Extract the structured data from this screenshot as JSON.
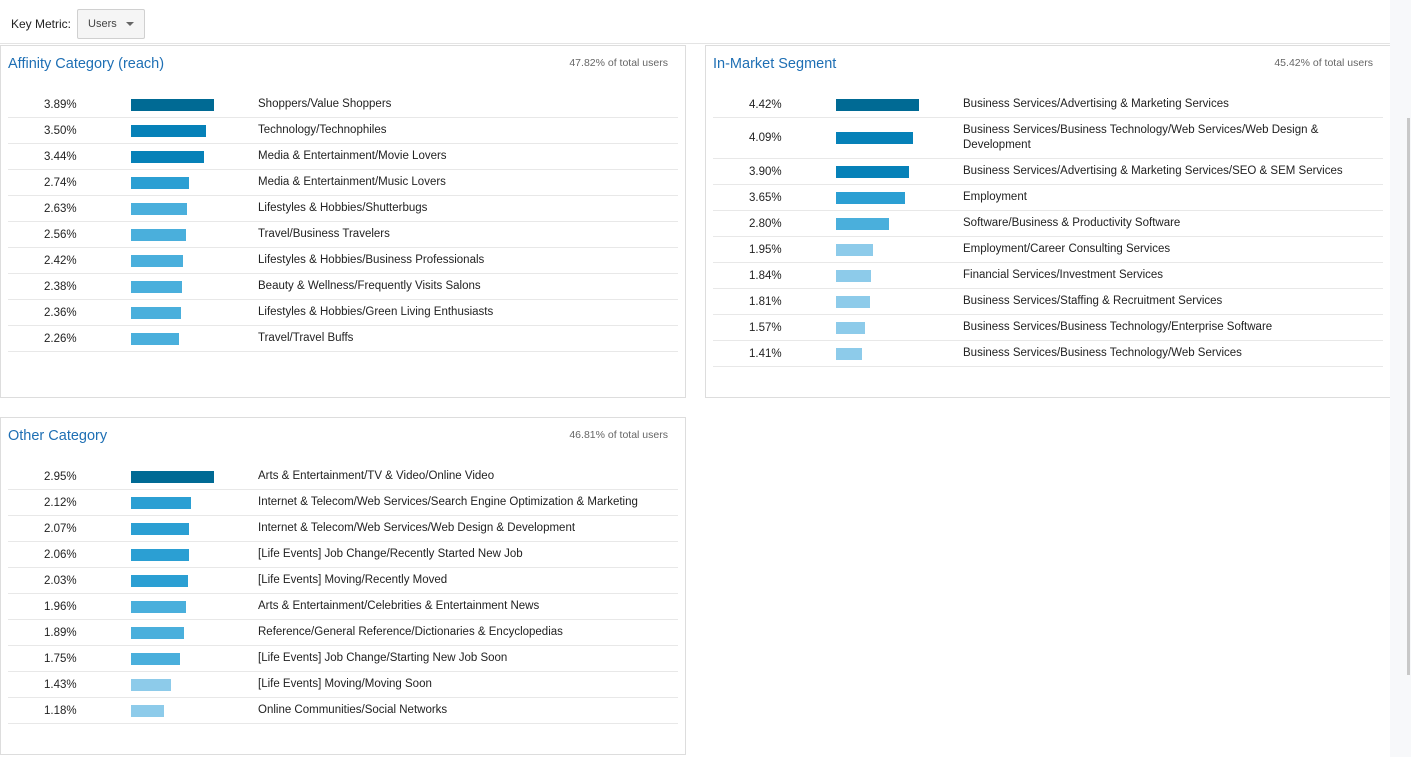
{
  "key_metric": {
    "label": "Key Metric:",
    "value": "Users"
  },
  "panels": [
    {
      "title": "Affinity Category (reach)",
      "total": "47.82% of total users",
      "rows": [
        {
          "pct": "3.89%",
          "value": 3.89,
          "label": "Shoppers/Value Shoppers"
        },
        {
          "pct": "3.50%",
          "value": 3.5,
          "label": "Technology/Technophiles"
        },
        {
          "pct": "3.44%",
          "value": 3.44,
          "label": "Media & Entertainment/Movie Lovers"
        },
        {
          "pct": "2.74%",
          "value": 2.74,
          "label": "Media & Entertainment/Music Lovers"
        },
        {
          "pct": "2.63%",
          "value": 2.63,
          "label": "Lifestyles & Hobbies/Shutterbugs"
        },
        {
          "pct": "2.56%",
          "value": 2.56,
          "label": "Travel/Business Travelers"
        },
        {
          "pct": "2.42%",
          "value": 2.42,
          "label": "Lifestyles & Hobbies/Business Professionals"
        },
        {
          "pct": "2.38%",
          "value": 2.38,
          "label": "Beauty & Wellness/Frequently Visits Salons"
        },
        {
          "pct": "2.36%",
          "value": 2.36,
          "label": "Lifestyles & Hobbies/Green Living Enthusiasts"
        },
        {
          "pct": "2.26%",
          "value": 2.26,
          "label": "Travel/Travel Buffs"
        }
      ]
    },
    {
      "title": "In-Market Segment",
      "total": "45.42% of total users",
      "rows": [
        {
          "pct": "4.42%",
          "value": 4.42,
          "label": "Business Services/Advertising & Marketing Services"
        },
        {
          "pct": "4.09%",
          "value": 4.09,
          "label": "Business Services/Business Technology/Web Services/Web Design & Development"
        },
        {
          "pct": "3.90%",
          "value": 3.9,
          "label": "Business Services/Advertising & Marketing Services/SEO & SEM Services"
        },
        {
          "pct": "3.65%",
          "value": 3.65,
          "label": "Employment"
        },
        {
          "pct": "2.80%",
          "value": 2.8,
          "label": "Software/Business & Productivity Software"
        },
        {
          "pct": "1.95%",
          "value": 1.95,
          "label": "Employment/Career Consulting Services"
        },
        {
          "pct": "1.84%",
          "value": 1.84,
          "label": "Financial Services/Investment Services"
        },
        {
          "pct": "1.81%",
          "value": 1.81,
          "label": "Business Services/Staffing & Recruitment Services"
        },
        {
          "pct": "1.57%",
          "value": 1.57,
          "label": "Business Services/Business Technology/Enterprise Software"
        },
        {
          "pct": "1.41%",
          "value": 1.41,
          "label": "Business Services/Business Technology/Web Services"
        }
      ]
    },
    {
      "title": "Other Category",
      "total": "46.81% of total users",
      "rows": [
        {
          "pct": "2.95%",
          "value": 2.95,
          "label": "Arts & Entertainment/TV & Video/Online Video"
        },
        {
          "pct": "2.12%",
          "value": 2.12,
          "label": "Internet & Telecom/Web Services/Search Engine Optimization & Marketing"
        },
        {
          "pct": "2.07%",
          "value": 2.07,
          "label": "Internet & Telecom/Web Services/Web Design & Development"
        },
        {
          "pct": "2.06%",
          "value": 2.06,
          "label": "[Life Events] Job Change/Recently Started New Job"
        },
        {
          "pct": "2.03%",
          "value": 2.03,
          "label": "[Life Events] Moving/Recently Moved"
        },
        {
          "pct": "1.96%",
          "value": 1.96,
          "label": "Arts & Entertainment/Celebrities & Entertainment News"
        },
        {
          "pct": "1.89%",
          "value": 1.89,
          "label": "Reference/General Reference/Dictionaries & Encyclopedias"
        },
        {
          "pct": "1.75%",
          "value": 1.75,
          "label": "[Life Events] Job Change/Starting New Job Soon"
        },
        {
          "pct": "1.43%",
          "value": 1.43,
          "label": "[Life Events] Moving/Moving Soon"
        },
        {
          "pct": "1.18%",
          "value": 1.18,
          "label": "Online Communities/Social Networks"
        }
      ]
    }
  ],
  "colors": {
    "top": "#006a94",
    "high": "#0681b8",
    "mid": "#2b9fd3",
    "low": "#4aafdc",
    "lowest": "#8dcbea"
  }
}
